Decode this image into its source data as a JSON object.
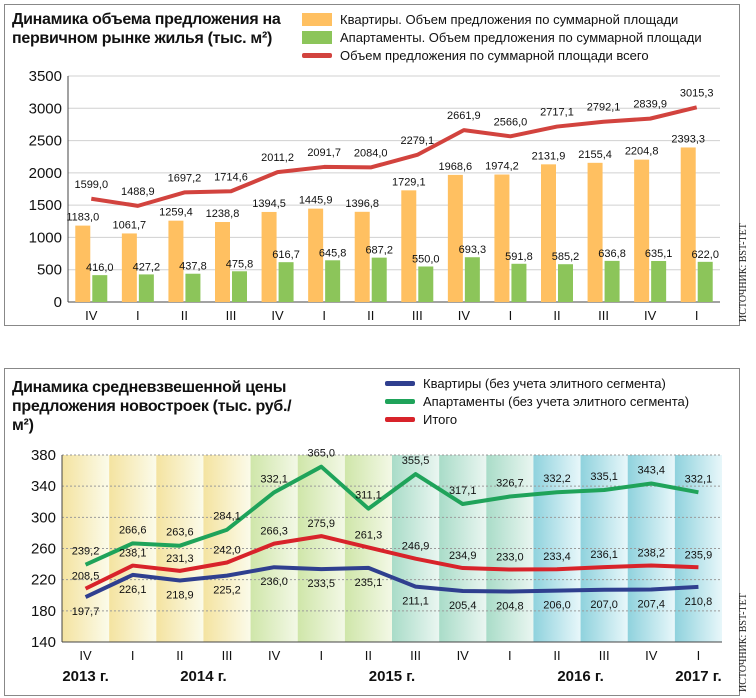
{
  "source_text": "ИСТОЧНИК: BST-TET",
  "x_quarters": [
    "IV",
    "I",
    "II",
    "III",
    "IV",
    "I",
    "II",
    "III",
    "IV",
    "I",
    "II",
    "III",
    "IV",
    "I"
  ],
  "year_labels": [
    {
      "label": "2013 г.",
      "index": 0
    },
    {
      "label": "2014 г.",
      "index": 2.5
    },
    {
      "label": "2015 г.",
      "index": 6.5
    },
    {
      "label": "2016 г.",
      "index": 10.5
    },
    {
      "label": "2017 г.",
      "index": 13
    }
  ],
  "chart_data": [
    {
      "type": "bar",
      "title": "Динамика объема предложения на первичном рынке жилья (тыс. м²)",
      "categories": [
        "IV 2013",
        "I 2014",
        "II 2014",
        "III 2014",
        "IV 2014",
        "I 2015",
        "II 2015",
        "III 2015",
        "IV 2015",
        "I 2016",
        "II 2016",
        "III 2016",
        "IV 2016",
        "I 2017"
      ],
      "ylim": [
        0,
        3500
      ],
      "yticks": [
        0,
        500,
        1000,
        1500,
        2000,
        2500,
        3000,
        3500
      ],
      "grid": true,
      "series": [
        {
          "name": "Квартиры. Объем предложения по суммарной площади",
          "kind": "bar",
          "color": "#ffc061",
          "values": [
            1183.0,
            1061.7,
            1259.4,
            1238.8,
            1394.5,
            1445.9,
            1396.8,
            1729.1,
            1968.6,
            1974.2,
            2131.9,
            2155.4,
            2204.8,
            2393.3
          ],
          "labels": [
            "1183,0",
            "1061,7",
            "1259,4",
            "1238,8",
            "1394,5",
            "1445,9",
            "1396,8",
            "1729,1",
            "1968,6",
            "1974,2",
            "2131,9",
            "2155,4",
            "2204,8",
            "2393,3"
          ]
        },
        {
          "name": "Апартаменты. Объем предложения по суммарной площади",
          "kind": "bar",
          "color": "#8cc55a",
          "values": [
            416.0,
            427.2,
            437.8,
            475.8,
            616.7,
            645.8,
            687.2,
            550.0,
            693.3,
            591.8,
            585.2,
            636.8,
            635.1,
            622.0
          ],
          "labels": [
            "416,0",
            "427,2",
            "437,8",
            "475,8",
            "616,7",
            "645,8",
            "687,2",
            "550,0",
            "693,3",
            "591,8",
            "585,2",
            "636,8",
            "635,1",
            "622,0"
          ]
        },
        {
          "name": "Объем предложения по суммарной площади всего",
          "kind": "line",
          "color": "#d2433e",
          "values": [
            1599.0,
            1488.9,
            1697.2,
            1714.6,
            2011.2,
            2091.7,
            2084.0,
            2279.1,
            2661.9,
            2566.0,
            2717.1,
            2792.1,
            2839.9,
            3015.3
          ],
          "labels": [
            "1599,0",
            "1488,9",
            "1697,2",
            "1714,6",
            "2011,2",
            "2091,7",
            "2084,0",
            "2279,1",
            "2661,9",
            "2566,0",
            "2717,1",
            "2792,1",
            "2839,9",
            "3015,3"
          ]
        }
      ]
    },
    {
      "type": "line",
      "title": "Динамика средневзвешенной цены предложения новостроек (тыс. руб./м²)",
      "categories": [
        "IV 2013",
        "I 2014",
        "II 2014",
        "III 2014",
        "IV 2014",
        "I 2015",
        "II 2015",
        "III 2015",
        "IV 2015",
        "I 2016",
        "II 2016",
        "III 2016",
        "IV 2016",
        "I 2017"
      ],
      "ylim": [
        140,
        380
      ],
      "yticks": [
        140,
        180,
        220,
        260,
        300,
        340,
        380
      ],
      "grid": true,
      "series": [
        {
          "name": "Квартиры (без учета элитного сегмента)",
          "color": "#2f3f8f",
          "values": [
            197.7,
            226.1,
            218.9,
            225.2,
            236.0,
            233.5,
            235.1,
            211.1,
            205.4,
            204.8,
            206.0,
            207.0,
            207.4,
            210.8
          ],
          "labels": [
            "197,7",
            "226,1",
            "218,9",
            "225,2",
            "236,0",
            "233,5",
            "235,1",
            "211,1",
            "205,4",
            "204,8",
            "206,0",
            "207,0",
            "207,4",
            "210,8"
          ]
        },
        {
          "name": "Апартаменты (без учета элитного сегмента)",
          "color": "#1fa35a",
          "values": [
            239.2,
            266.6,
            263.6,
            284.1,
            332.1,
            365.0,
            311.1,
            355.5,
            317.1,
            326.7,
            332.2,
            335.1,
            343.4,
            332.1
          ],
          "labels": [
            "239,2",
            "266,6",
            "263,6",
            "284,1",
            "332,1",
            "365,0",
            "311,1",
            "355,5",
            "317,1",
            "326,7",
            "332,2",
            "335,1",
            "343,4",
            "332,1"
          ]
        },
        {
          "name": "Итого",
          "color": "#d8232a",
          "values": [
            208.5,
            238.1,
            231.3,
            242.0,
            266.3,
            275.9,
            261.3,
            246.9,
            234.9,
            233.0,
            233.4,
            236.1,
            238.2,
            235.9
          ],
          "labels": [
            "208,5",
            "238,1",
            "231,3",
            "242,0",
            "266,3",
            "275,9",
            "261,3",
            "246,9",
            "234,9",
            "233,0",
            "233,4",
            "236,1",
            "238,2",
            "235,9"
          ]
        }
      ]
    }
  ]
}
